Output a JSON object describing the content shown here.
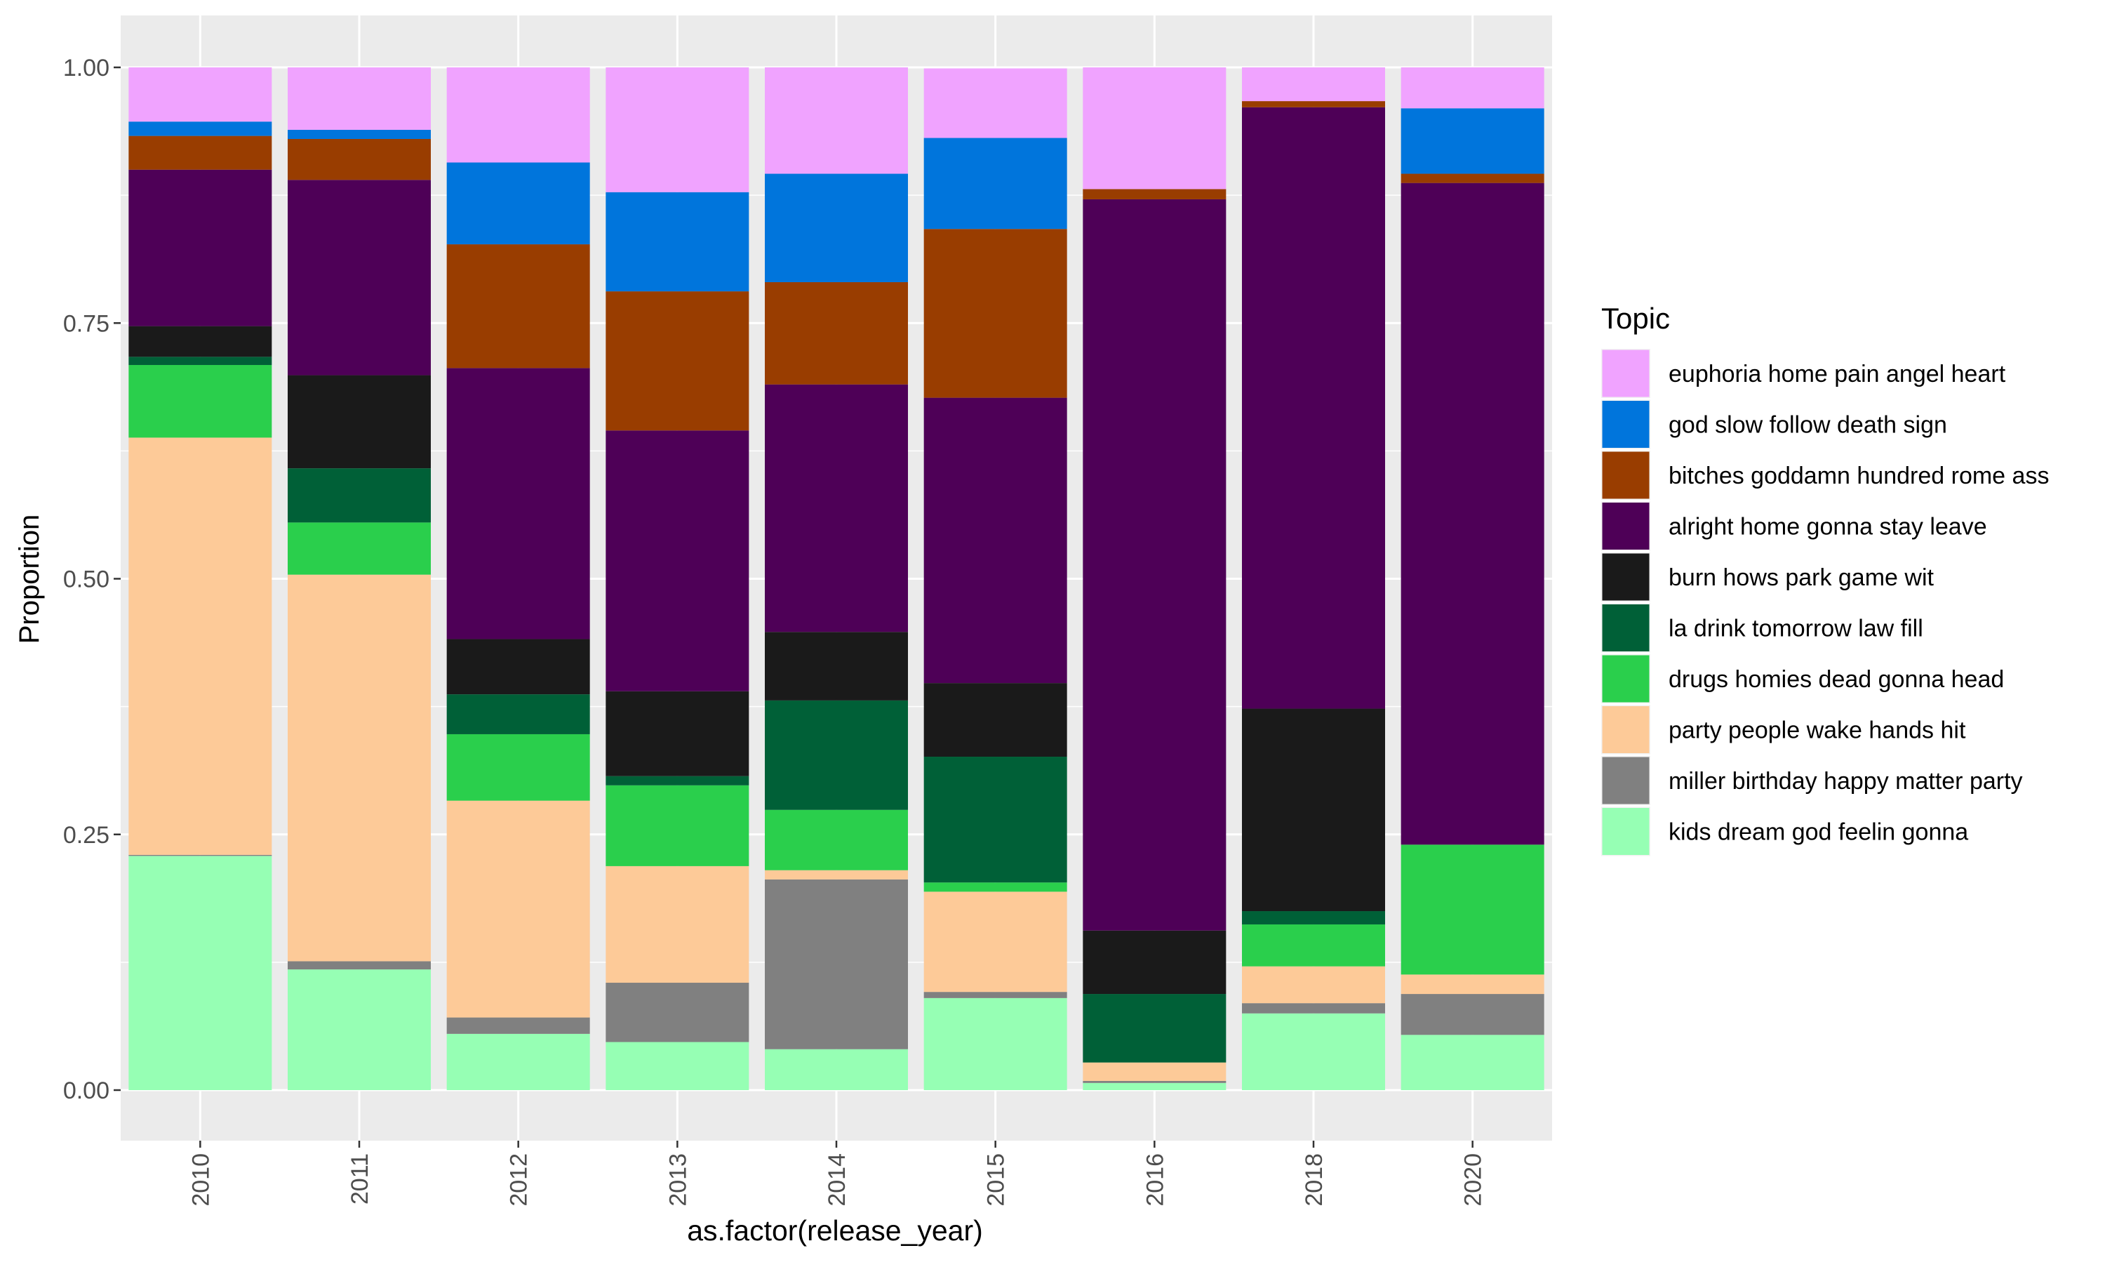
{
  "chart_data": {
    "type": "bar",
    "stacked": true,
    "xlabel": "as.factor(release_year)",
    "ylabel": "Proportion",
    "ylim": [
      0,
      1
    ],
    "yticks": [
      "0.00",
      "0.25",
      "0.50",
      "0.75",
      "1.00"
    ],
    "yticks_values": [
      0,
      0.25,
      0.5,
      0.75,
      1.0
    ],
    "categories": [
      "2010",
      "2011",
      "2012",
      "2013",
      "2014",
      "2015",
      "2016",
      "2018",
      "2020"
    ],
    "legend_title": "Topic",
    "legend_position": "right",
    "series": [
      {
        "name": "kids dream god feelin gonna",
        "color": "#96FFB4",
        "values": [
          0.229,
          0.118,
          0.055,
          0.047,
          0.04,
          0.09,
          0.007,
          0.075,
          0.054
        ]
      },
      {
        "name": "miller birthday happy matter party",
        "color": "#808080",
        "values": [
          0.001,
          0.008,
          0.016,
          0.058,
          0.166,
          0.006,
          0.002,
          0.01,
          0.04
        ]
      },
      {
        "name": "party people wake hands hit",
        "color": "#FDCA98",
        "values": [
          0.408,
          0.378,
          0.212,
          0.114,
          0.009,
          0.098,
          0.018,
          0.036,
          0.019
        ]
      },
      {
        "name": "drugs homies dead gonna head",
        "color": "#2ACF4C",
        "values": [
          0.071,
          0.051,
          0.065,
          0.079,
          0.059,
          0.009,
          0.0,
          0.041,
          0.127
        ]
      },
      {
        "name": "la drink tomorrow law fill",
        "color": "#006037",
        "values": [
          0.008,
          0.053,
          0.039,
          0.009,
          0.107,
          0.123,
          0.067,
          0.013,
          0.0
        ]
      },
      {
        "name": "burn hows park game wit",
        "color": "#1A1A1A",
        "values": [
          0.03,
          0.091,
          0.054,
          0.083,
          0.067,
          0.072,
          0.062,
          0.198,
          0.0
        ]
      },
      {
        "name": "alright home gonna stay leave",
        "color": "#4E0057",
        "values": [
          0.153,
          0.191,
          0.265,
          0.255,
          0.242,
          0.279,
          0.715,
          0.588,
          0.647
        ]
      },
      {
        "name": "bitches goddamn hundred rome ass",
        "color": "#993D00",
        "values": [
          0.033,
          0.04,
          0.121,
          0.136,
          0.1,
          0.165,
          0.01,
          0.006,
          0.009
        ]
      },
      {
        "name": "god slow follow death sign",
        "color": "#0075DC",
        "values": [
          0.014,
          0.009,
          0.08,
          0.097,
          0.106,
          0.089,
          0.0,
          0.0,
          0.064
        ]
      },
      {
        "name": "euphoria home pain angel heart",
        "color": "#F0A3FF",
        "values": [
          0.053,
          0.061,
          0.093,
          0.122,
          0.104,
          0.068,
          0.119,
          0.033,
          0.04
        ]
      }
    ],
    "legend_order": [
      "euphoria home pain angel heart",
      "god slow follow death sign",
      "bitches goddamn hundred rome ass",
      "alright home gonna stay leave",
      "burn hows park game wit",
      "la drink tomorrow law fill",
      "drugs homies dead gonna head",
      "party people wake hands hit",
      "miller birthday happy matter party",
      "kids dream god feelin gonna"
    ],
    "grid": true,
    "panel_background": "#EBEBEB"
  }
}
